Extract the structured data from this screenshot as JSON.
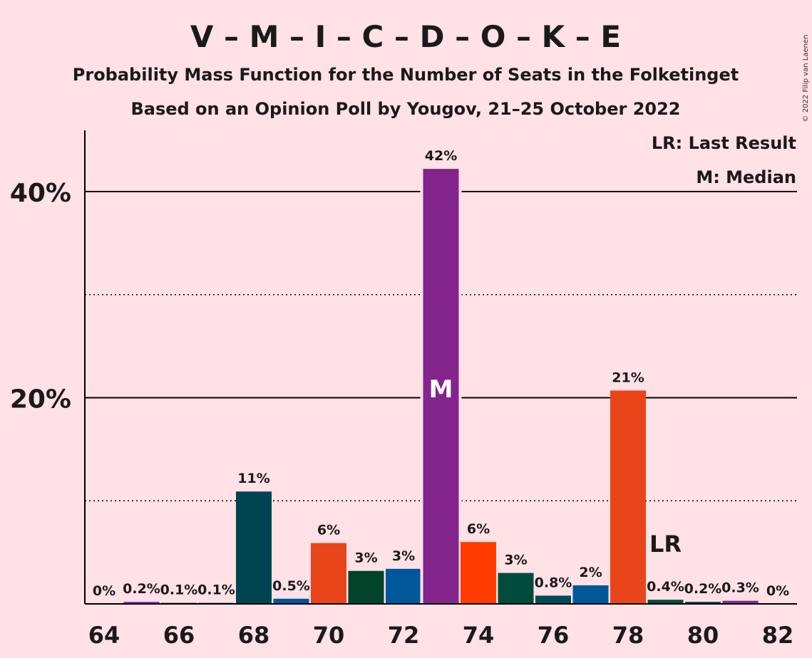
{
  "chart_data": {
    "type": "bar",
    "title": "V – M – I – C – D – O – K – E",
    "subtitle1": "Probability Mass Function for the Number of Seats in the Folketinget",
    "subtitle2": "Based on an Opinion Poll by Yougov, 21–25 October 2022",
    "copyright": "© 2022 Filip van Laenen",
    "legend": {
      "lr": "LR: Last Result",
      "median": "M: Median",
      "placement": "top-right"
    },
    "xlabel": "",
    "ylabel": "",
    "ylim": [
      0,
      46
    ],
    "y_ticks": [
      {
        "value": 40,
        "label": "40%"
      },
      {
        "value": 20,
        "label": "20%"
      }
    ],
    "dotted_lines": [
      10,
      30
    ],
    "x_ticks": [
      "64",
      "66",
      "68",
      "70",
      "72",
      "74",
      "76",
      "78",
      "80",
      "82"
    ],
    "bars": [
      {
        "seats": 64,
        "value": 0,
        "label": "0%",
        "color": "#8B2BB8"
      },
      {
        "seats": 65,
        "value": 0.2,
        "label": "0.2%",
        "color": "#8B2BB8"
      },
      {
        "seats": 66,
        "value": 0.1,
        "label": "0.1%",
        "color": "#0F4E80"
      },
      {
        "seats": 67,
        "value": 0.1,
        "label": "0.1%",
        "color": "#004B56"
      },
      {
        "seats": 68,
        "value": 10.9,
        "label": "11%",
        "color": "#014451"
      },
      {
        "seats": 69,
        "value": 0.5,
        "label": "0.5%",
        "color": "#00549A"
      },
      {
        "seats": 70,
        "value": 5.9,
        "label": "6%",
        "color": "#E8451A"
      },
      {
        "seats": 71,
        "value": 3.2,
        "label": "3%",
        "color": "#01432B"
      },
      {
        "seats": 72,
        "value": 3.4,
        "label": "3%",
        "color": "#00579A"
      },
      {
        "seats": 73,
        "value": 42.2,
        "label": "42%",
        "color": "#83258C"
      },
      {
        "seats": 74,
        "value": 6.0,
        "label": "6%",
        "color": "#FF3C00"
      },
      {
        "seats": 75,
        "value": 3.0,
        "label": "3%",
        "color": "#004B3C"
      },
      {
        "seats": 76,
        "value": 0.8,
        "label": "0.8%",
        "color": "#004B56"
      },
      {
        "seats": 77,
        "value": 1.8,
        "label": "2%",
        "color": "#00579A"
      },
      {
        "seats": 78,
        "value": 20.7,
        "label": "21%",
        "color": "#E8451A"
      },
      {
        "seats": 79,
        "value": 0.4,
        "label": "0.4%",
        "color": "#004B3C"
      },
      {
        "seats": 80,
        "value": 0.2,
        "label": "0.2%",
        "color": "#004B56"
      },
      {
        "seats": 81,
        "value": 0.3,
        "label": "0.3%",
        "color": "#83258C"
      },
      {
        "seats": 82,
        "value": 0,
        "label": "0%",
        "color": "#8B2BB8"
      }
    ],
    "median_seats": 73,
    "median_label": "M",
    "last_result_seats": 79,
    "last_result_label": "LR"
  }
}
